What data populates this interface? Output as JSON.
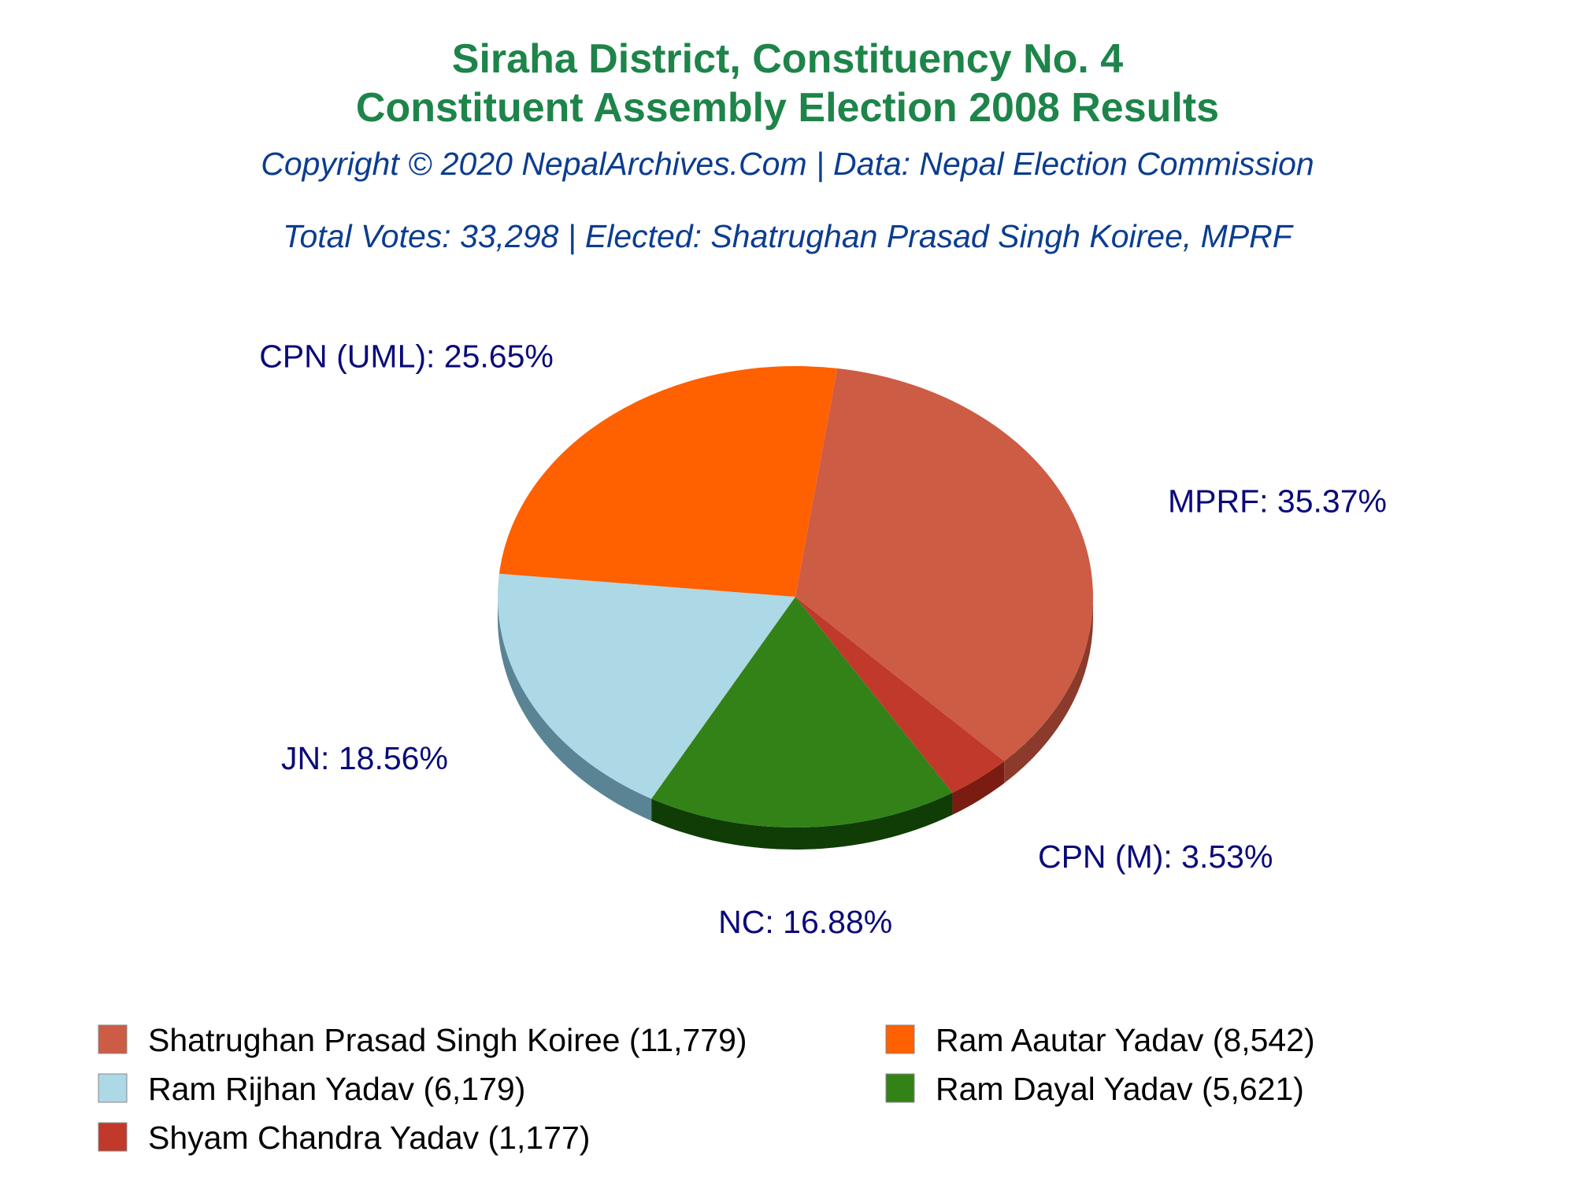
{
  "chart_data": {
    "type": "pie",
    "title": "Siraha District, Constituency No. 4",
    "title_line2": "Constituent Assembly Election 2008 Results",
    "subtitle": "Copyright © 2020 NepalArchives.Com | Data: Nepal Election Commission",
    "summary": "Total Votes: 33,298 | Elected: Shatrughan Prasad Singh Koiree, MPRF",
    "slices": [
      {
        "party": "MPRF",
        "percent": 35.37,
        "label": "MPRF: 35.37%",
        "candidate": "Shatrughan Prasad Singh Koiree",
        "votes": 11779,
        "legend": "Shatrughan Prasad Singh Koiree (11,779)",
        "color": "#cd5c45",
        "side_color": "#8b3a2b"
      },
      {
        "party": "CPN (M)",
        "percent": 3.53,
        "label": "CPN (M): 3.53%",
        "candidate": "Shyam Chandra Yadav",
        "votes": 1177,
        "legend": "Shyam Chandra Yadav (1,177)",
        "color": "#c0392b",
        "side_color": "#7a1c12"
      },
      {
        "party": "NC",
        "percent": 16.88,
        "label": "NC: 16.88%",
        "candidate": "Ram Dayal Yadav",
        "votes": 5621,
        "legend": "Ram Dayal Yadav (5,621)",
        "color": "#338217",
        "side_color": "#0f3d05"
      },
      {
        "party": "JN",
        "percent": 18.56,
        "label": "JN: 18.56%",
        "candidate": "Ram Rijhan Yadav",
        "votes": 6179,
        "legend": "Ram Rijhan Yadav (6,179)",
        "color": "#add8e6",
        "side_color": "#5a8494"
      },
      {
        "party": "CPN (UML)",
        "percent": 25.65,
        "label": "CPN (UML): 25.65%",
        "candidate": "Ram Aautar Yadav",
        "votes": 8542,
        "legend": "Ram Aautar Yadav (8,542)",
        "color": "#ff6000",
        "side_color": "#a00000"
      }
    ],
    "legend_order": [
      0,
      4,
      3,
      2,
      1
    ]
  }
}
